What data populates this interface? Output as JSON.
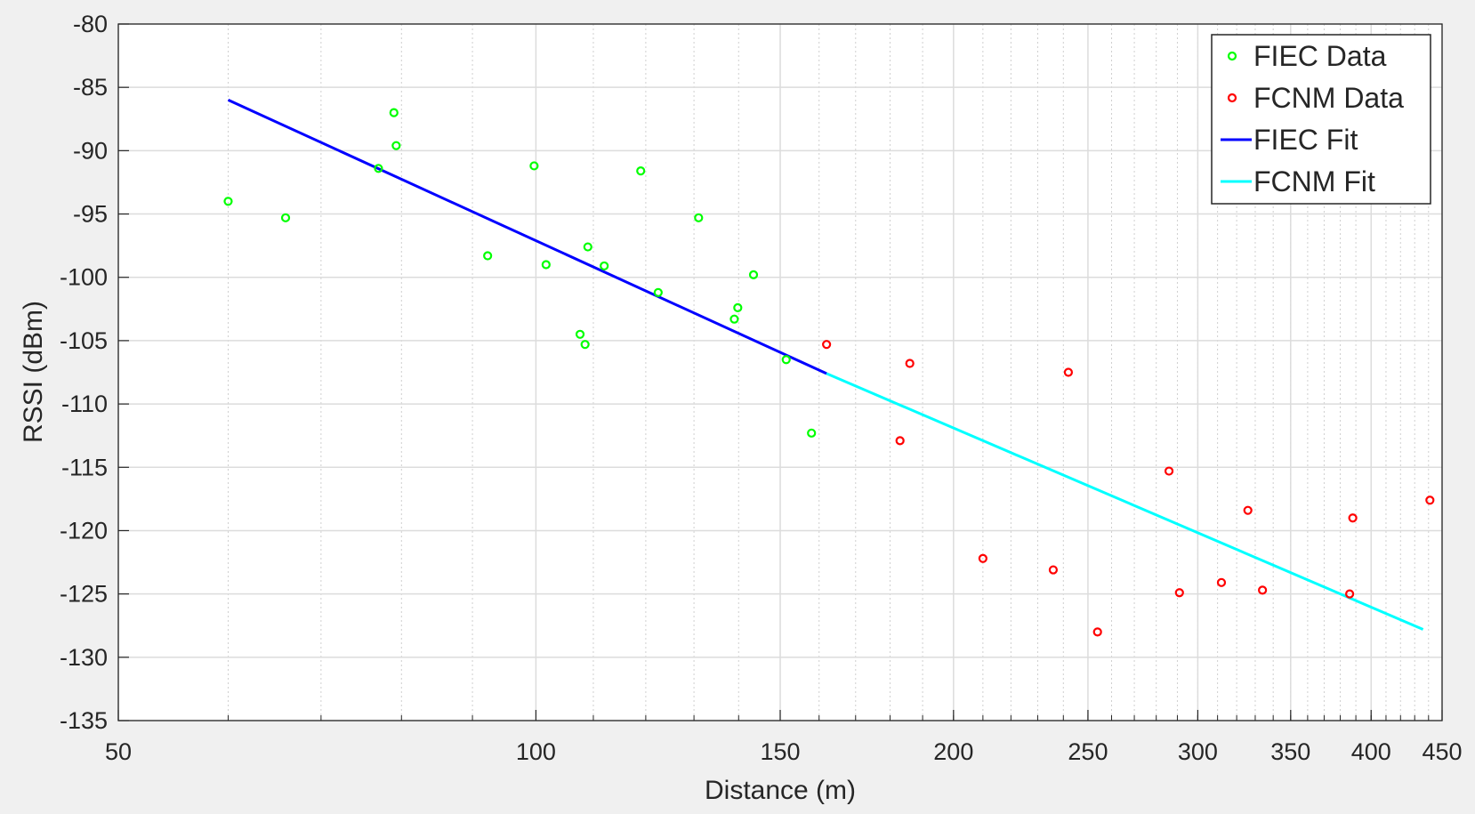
{
  "chart_data": {
    "type": "scatter",
    "xlabel": "Distance (m)",
    "ylabel": "RSSI (dBm)",
    "xscale": "log",
    "xlim": [
      50,
      450
    ],
    "ylim": [
      -135,
      -80
    ],
    "grid": true,
    "legend_position": "top-right",
    "x_tick_labels": [
      50,
      100,
      150,
      200,
      250,
      300,
      350,
      400,
      450
    ],
    "y_tick_labels": [
      -80,
      -85,
      -90,
      -95,
      -100,
      -105,
      -110,
      -115,
      -120,
      -125,
      -130,
      -135
    ],
    "series": [
      {
        "name": "FIEC Data",
        "kind": "scatter",
        "color": "#00ff00",
        "points": [
          [
            60,
            -94.0
          ],
          [
            66,
            -95.3
          ],
          [
            77,
            -91.4
          ],
          [
            79,
            -87.0
          ],
          [
            79.3,
            -89.6
          ],
          [
            92.3,
            -98.3
          ],
          [
            99.7,
            -91.2
          ],
          [
            101.7,
            -99.0
          ],
          [
            107.6,
            -104.5
          ],
          [
            108.5,
            -105.3
          ],
          [
            109,
            -97.6
          ],
          [
            112,
            -99.1
          ],
          [
            119,
            -91.6
          ],
          [
            122.5,
            -101.2
          ],
          [
            131,
            -95.3
          ],
          [
            139,
            -103.3
          ],
          [
            139.8,
            -102.4
          ],
          [
            143.5,
            -99.8
          ],
          [
            151.5,
            -106.5
          ],
          [
            158,
            -112.3
          ]
        ]
      },
      {
        "name": "FCNM Data",
        "kind": "scatter",
        "color": "#ff0000",
        "points": [
          [
            162,
            -105.3
          ],
          [
            183,
            -112.9
          ],
          [
            186,
            -106.8
          ],
          [
            210,
            -122.2
          ],
          [
            236,
            -123.1
          ],
          [
            242,
            -107.5
          ],
          [
            254,
            -128.0
          ],
          [
            286,
            -115.3
          ],
          [
            291,
            -124.9
          ],
          [
            312,
            -124.1
          ],
          [
            326,
            -118.4
          ],
          [
            334,
            -124.7
          ],
          [
            386,
            -125.0
          ],
          [
            388,
            -119.0
          ],
          [
            441,
            -117.6
          ]
        ]
      },
      {
        "name": "FIEC Fit",
        "kind": "line",
        "color": "#0000ff",
        "points": [
          [
            60,
            -86.0
          ],
          [
            162,
            -107.6
          ]
        ]
      },
      {
        "name": "FCNM Fit",
        "kind": "line",
        "color": "#00ffff",
        "points": [
          [
            162,
            -107.6
          ],
          [
            436,
            -127.8
          ]
        ]
      }
    ]
  }
}
